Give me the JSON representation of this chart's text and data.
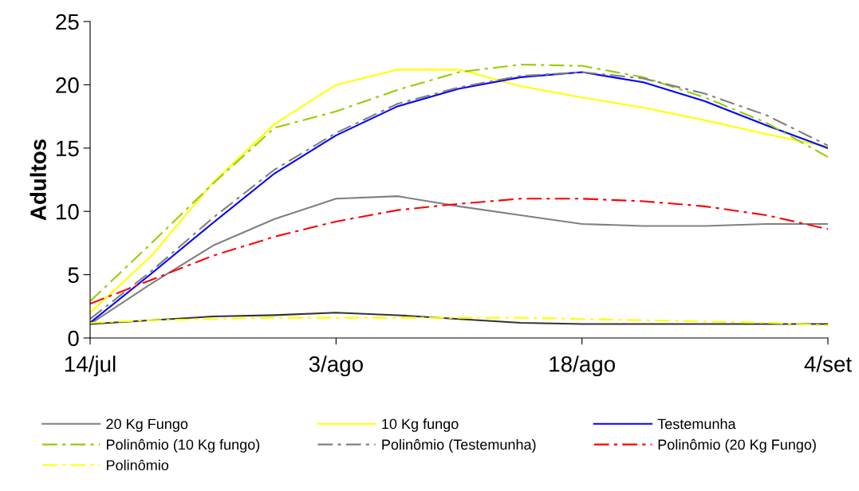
{
  "chart_data": {
    "type": "line",
    "ylabel": "Adultos",
    "categories": [
      "14/jul",
      null,
      null,
      null,
      "3/ago",
      null,
      null,
      null,
      "18/ago",
      null,
      null,
      null,
      "4/set"
    ],
    "ylim": [
      0,
      25
    ],
    "yticks": [
      0,
      5,
      10,
      15,
      20,
      25
    ],
    "grid": false,
    "legend": "bottom",
    "marker": "none",
    "series": [
      {
        "color": "#333333",
        "line_style": "solid",
        "values": [
          1.1,
          1.4,
          1.7,
          1.8,
          2.0,
          1.8,
          1.5,
          1.2,
          1.1,
          1.1,
          1.1,
          1.1,
          1.1
        ]
      },
      {
        "name": "20 Kg Fungo",
        "color": "#808080",
        "line_style": "solid",
        "values": [
          1.1,
          4.3,
          7.3,
          9.4,
          11.0,
          11.2,
          10.4,
          9.7,
          9.0,
          8.85,
          8.85,
          9.0,
          9.0
        ]
      },
      {
        "name": "10 Kg fungo",
        "color": "#ffff00",
        "line_style": "solid",
        "values": [
          2.0,
          6.5,
          12.3,
          16.9,
          20.0,
          21.2,
          21.2,
          19.9,
          19.0,
          18.2,
          17.2,
          16.1,
          15.1
        ]
      },
      {
        "name": "Testemunha",
        "color": "#0000ff",
        "line_style": "solid",
        "values": [
          1.2,
          5.1,
          9.1,
          13.0,
          16.0,
          18.3,
          19.7,
          20.6,
          21.0,
          20.2,
          18.7,
          16.8,
          15.0
        ]
      },
      {
        "name": "Polinômio (10 Kg fungo)",
        "color": "#99cc00",
        "line_style": "dashed",
        "values": [
          2.9,
          7.5,
          12.2,
          16.6,
          17.9,
          19.6,
          21.0,
          21.6,
          21.5,
          20.6,
          19.0,
          17.0,
          14.3
        ]
      },
      {
        "name": "Polinômio (Testemunha)",
        "color": "#808080",
        "line_style": "dashed",
        "values": [
          1.5,
          5.3,
          9.5,
          13.3,
          16.2,
          18.5,
          19.8,
          20.7,
          21.0,
          20.5,
          19.3,
          17.6,
          15.2
        ]
      },
      {
        "name": "Polinômio (20 Kg Fungo)",
        "color": "#ff0000",
        "line_style": "dashed",
        "values": [
          2.7,
          4.6,
          6.5,
          8.0,
          9.2,
          10.1,
          10.6,
          11.0,
          11.0,
          10.8,
          10.4,
          9.7,
          8.6
        ]
      },
      {
        "name": "Polinômio",
        "color": "#ffff00",
        "line_style": "dashed",
        "values": [
          1.2,
          1.4,
          1.5,
          1.6,
          1.6,
          1.6,
          1.6,
          1.6,
          1.5,
          1.4,
          1.3,
          1.2,
          1.0
        ]
      }
    ]
  }
}
